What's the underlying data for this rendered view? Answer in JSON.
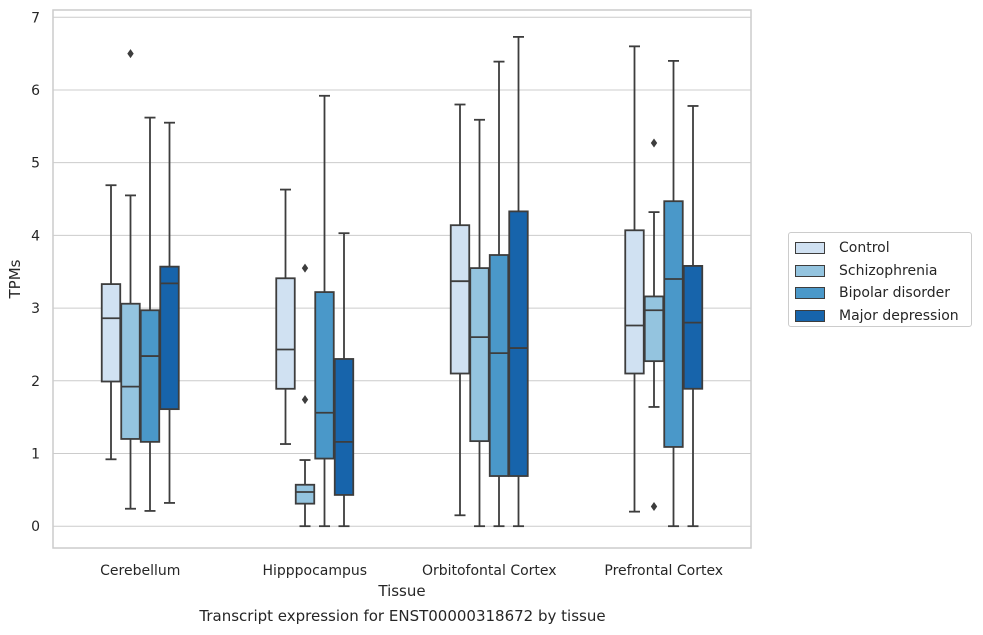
{
  "chart_data": {
    "type": "box",
    "title": "",
    "caption": "Transcript expression for ENST00000318672 by tissue",
    "xlabel": "Tissue",
    "ylabel": "TPMs",
    "ylim": [
      -0.3,
      7.1
    ],
    "yticks": [
      0,
      1,
      2,
      3,
      4,
      5,
      6,
      7
    ],
    "grid": "horizontal",
    "legend_position": "right",
    "categories": [
      "Cerebellum",
      "Hipppocampus",
      "Orbitofontal Cortex",
      "Prefrontal Cortex"
    ],
    "series": [
      {
        "name": "Control",
        "color": "#d0e1f2",
        "boxes": [
          {
            "whislo": 0.92,
            "q1": 1.99,
            "med": 2.86,
            "q3": 3.33,
            "whishi": 4.69,
            "fliers": []
          },
          {
            "whislo": 1.13,
            "q1": 1.89,
            "med": 2.43,
            "q3": 3.41,
            "whishi": 4.63,
            "fliers": []
          },
          {
            "whislo": 0.15,
            "q1": 2.1,
            "med": 3.37,
            "q3": 4.14,
            "whishi": 5.8,
            "fliers": []
          },
          {
            "whislo": 0.2,
            "q1": 2.1,
            "med": 2.76,
            "q3": 4.07,
            "whishi": 6.6,
            "fliers": []
          }
        ]
      },
      {
        "name": "Schizophrenia",
        "color": "#94c4df",
        "boxes": [
          {
            "whislo": 0.24,
            "q1": 1.2,
            "med": 1.92,
            "q3": 3.06,
            "whishi": 4.55,
            "fliers": [
              6.5
            ]
          },
          {
            "whislo": 0.0,
            "q1": 0.31,
            "med": 0.47,
            "q3": 0.57,
            "whishi": 0.91,
            "fliers": [
              1.74,
              3.55
            ]
          },
          {
            "whislo": 0.0,
            "q1": 1.17,
            "med": 2.6,
            "q3": 3.55,
            "whishi": 5.59,
            "fliers": []
          },
          {
            "whislo": 1.64,
            "q1": 2.27,
            "med": 2.97,
            "q3": 3.16,
            "whishi": 4.32,
            "fliers": [
              0.27,
              5.27
            ]
          }
        ]
      },
      {
        "name": "Bipolar disorder",
        "color": "#4a98c9",
        "boxes": [
          {
            "whislo": 0.21,
            "q1": 1.16,
            "med": 2.34,
            "q3": 2.97,
            "whishi": 5.62,
            "fliers": []
          },
          {
            "whislo": 0.0,
            "q1": 0.93,
            "med": 1.56,
            "q3": 3.22,
            "whishi": 5.92,
            "fliers": []
          },
          {
            "whislo": 0.0,
            "q1": 0.69,
            "med": 2.38,
            "q3": 3.73,
            "whishi": 6.39,
            "fliers": []
          },
          {
            "whislo": 0.0,
            "q1": 1.09,
            "med": 3.4,
            "q3": 4.47,
            "whishi": 6.4,
            "fliers": []
          }
        ]
      },
      {
        "name": "Major depression",
        "color": "#1764ab",
        "boxes": [
          {
            "whislo": 0.32,
            "q1": 1.61,
            "med": 3.34,
            "q3": 3.57,
            "whishi": 5.55,
            "fliers": []
          },
          {
            "whislo": 0.0,
            "q1": 0.43,
            "med": 1.16,
            "q3": 2.3,
            "whishi": 4.03,
            "fliers": []
          },
          {
            "whislo": 0.0,
            "q1": 0.69,
            "med": 2.45,
            "q3": 4.33,
            "whishi": 6.73,
            "fliers": []
          },
          {
            "whislo": 0.0,
            "q1": 1.89,
            "med": 2.8,
            "q3": 3.58,
            "whishi": 5.78,
            "fliers": []
          }
        ]
      }
    ]
  }
}
